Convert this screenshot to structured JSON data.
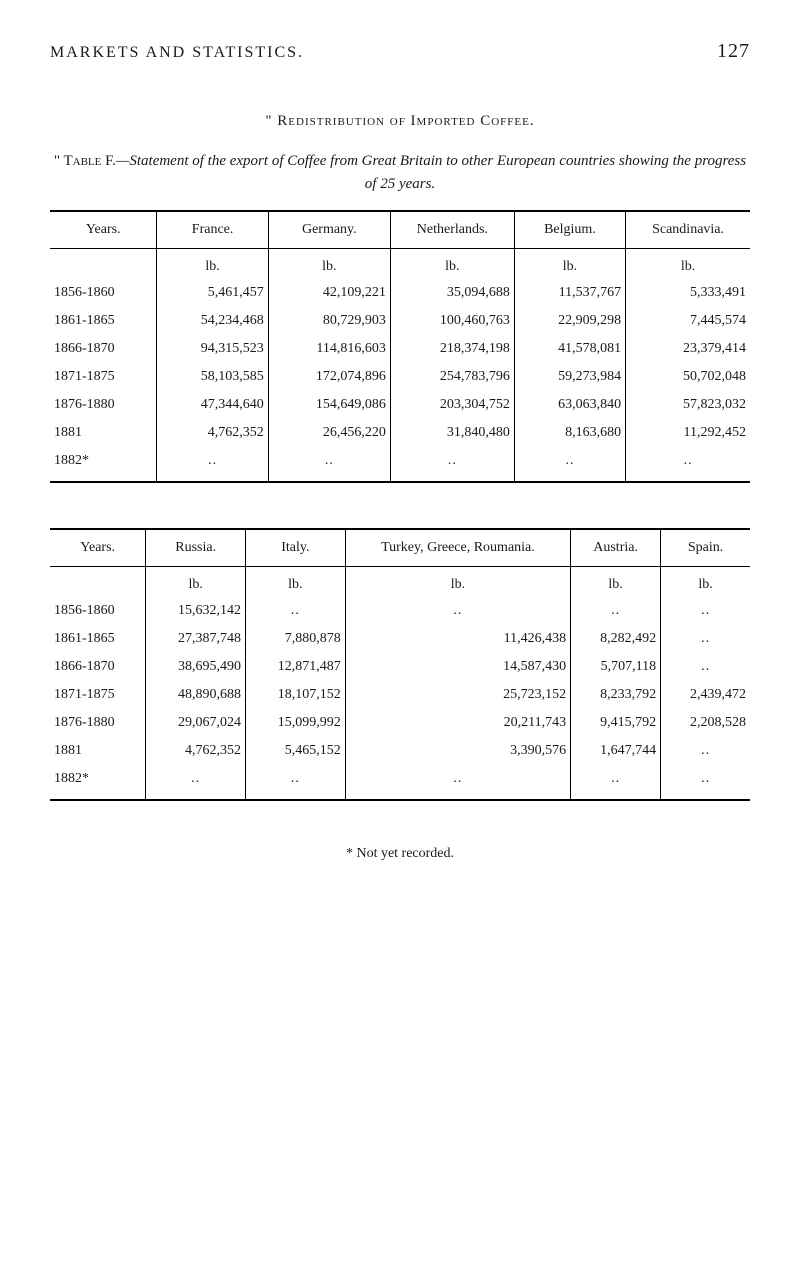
{
  "header": {
    "title": "MARKETS AND STATISTICS.",
    "page": "127"
  },
  "section_title": "\" Redistribution of Imported Coffee.",
  "caption": {
    "label": "\" Table F.",
    "text_prefix": "—Statement of the export of Coffee from Great Britain to other European countries showing the progress of ",
    "text_suffix": "25 years."
  },
  "table1": {
    "columns": [
      "Years.",
      "France.",
      "Germany.",
      "Netherlands.",
      "Belgium.",
      "Scandinavia."
    ],
    "unit": "lb.",
    "rows": [
      {
        "year": "1856-1860",
        "values": [
          "5,461,457",
          "42,109,221",
          "35,094,688",
          "11,537,767",
          "5,333,491"
        ]
      },
      {
        "year": "1861-1865",
        "values": [
          "54,234,468",
          "80,729,903",
          "100,460,763",
          "22,909,298",
          "7,445,574"
        ]
      },
      {
        "year": "1866-1870",
        "values": [
          "94,315,523",
          "114,816,603",
          "218,374,198",
          "41,578,081",
          "23,379,414"
        ]
      },
      {
        "year": "1871-1875",
        "values": [
          "58,103,585",
          "172,074,896",
          "254,783,796",
          "59,273,984",
          "50,702,048"
        ]
      },
      {
        "year": "1876-1880",
        "values": [
          "47,344,640",
          "154,649,086",
          "203,304,752",
          "63,063,840",
          "57,823,032"
        ]
      },
      {
        "year": "1881",
        "values": [
          "4,762,352",
          "26,456,220",
          "31,840,480",
          "8,163,680",
          "11,292,452"
        ]
      },
      {
        "year": "1882*",
        "values": [
          "..",
          "..",
          "..",
          "..",
          ".."
        ]
      }
    ]
  },
  "table2": {
    "columns": [
      "Years.",
      "Russia.",
      "Italy.",
      "Turkey, Greece, Roumania.",
      "Austria.",
      "Spain."
    ],
    "unit": "lb.",
    "rows": [
      {
        "year": "1856-1860",
        "values": [
          "15,632,142",
          "..",
          "..",
          "..",
          ".."
        ]
      },
      {
        "year": "1861-1865",
        "values": [
          "27,387,748",
          "7,880,878",
          "11,426,438",
          "8,282,492",
          ".."
        ]
      },
      {
        "year": "1866-1870",
        "values": [
          "38,695,490",
          "12,871,487",
          "14,587,430",
          "5,707,118",
          ".."
        ]
      },
      {
        "year": "1871-1875",
        "values": [
          "48,890,688",
          "18,107,152",
          "25,723,152",
          "8,233,792",
          "2,439,472"
        ]
      },
      {
        "year": "1876-1880",
        "values": [
          "29,067,024",
          "15,099,992",
          "20,211,743",
          "9,415,792",
          "2,208,528"
        ]
      },
      {
        "year": "1881",
        "values": [
          "4,762,352",
          "5,465,152",
          "3,390,576",
          "1,647,744",
          ".."
        ]
      },
      {
        "year": "1882*",
        "values": [
          "..",
          "..",
          "..",
          "..",
          ".."
        ]
      }
    ]
  },
  "footnote": "* Not yet recorded."
}
